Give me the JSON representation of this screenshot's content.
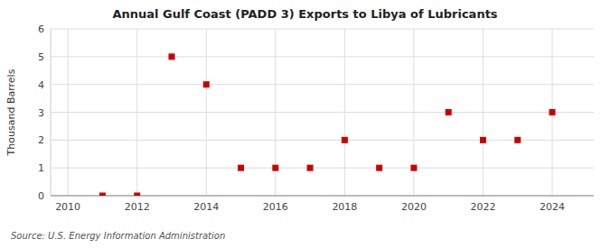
{
  "chart_data": {
    "type": "scatter",
    "title": "Annual Gulf Coast (PADD 3) Exports to Libya of Lubricants",
    "ylabel": "Thousand Barrels",
    "source": "Source: U.S. Energy Information Administration",
    "x": [
      2011,
      2012,
      2013,
      2014,
      2015,
      2016,
      2017,
      2018,
      2019,
      2020,
      2021,
      2022,
      2023,
      2024
    ],
    "values": [
      0,
      0,
      5,
      4,
      1,
      1,
      1,
      2,
      1,
      1,
      3,
      2,
      2,
      3
    ],
    "color": "#cc0000",
    "marker": "square",
    "xlim": [
      2009.5,
      2025.2
    ],
    "ylim": [
      0,
      6
    ],
    "xticks": [
      2010,
      2012,
      2014,
      2016,
      2018,
      2020,
      2022,
      2024
    ],
    "yticks": [
      0,
      1,
      2,
      3,
      4,
      5,
      6
    ],
    "grid": true
  }
}
